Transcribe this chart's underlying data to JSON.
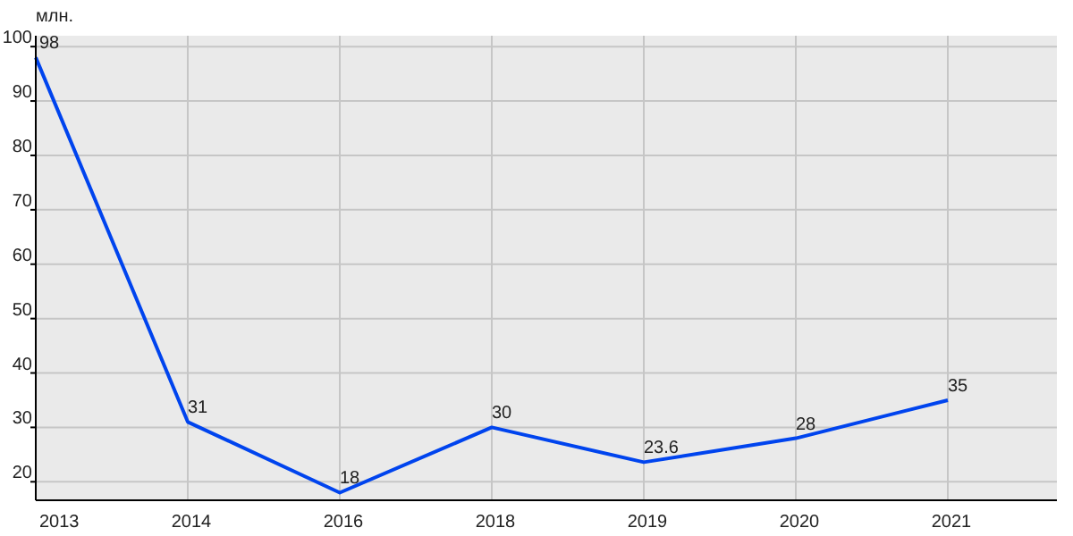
{
  "chart_data": {
    "type": "line",
    "ylabel": "млн.",
    "categories": [
      "2013",
      "2014",
      "2016",
      "2018",
      "2019",
      "2020",
      "2021"
    ],
    "series": [
      {
        "color": "#0044ee",
        "values": [
          98,
          31,
          18,
          30,
          23.6,
          28,
          35
        ]
      }
    ],
    "ylim": [
      16.6,
      102
    ],
    "yticks": [
      20,
      30,
      40,
      50,
      60,
      70,
      80,
      90,
      100
    ],
    "grid": true,
    "data_labels": true,
    "marker": "none",
    "line_style": "solid"
  }
}
